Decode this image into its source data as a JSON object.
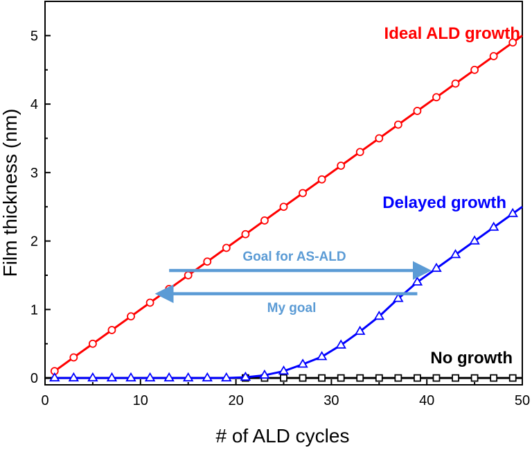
{
  "chart_data": {
    "type": "line",
    "xlabel": "# of ALD cycles",
    "ylabel": "Film thickness (nm)",
    "xlim": [
      0,
      50
    ],
    "ylim": [
      -0.1,
      5.5
    ],
    "xticks": [
      "0",
      "10",
      "20",
      "30",
      "40",
      "50"
    ],
    "yticks": [
      "0",
      "1",
      "2",
      "3",
      "4",
      "5"
    ],
    "grid": false,
    "series": [
      {
        "name": "Ideal ALD growth",
        "color": "#ff0000",
        "marker": "circle",
        "x": [
          1,
          3,
          5,
          7,
          9,
          11,
          13,
          15,
          17,
          19,
          21,
          23,
          25,
          27,
          29,
          31,
          33,
          35,
          37,
          39,
          41,
          43,
          45,
          47,
          49
        ],
        "y": [
          0.1,
          0.3,
          0.5,
          0.7,
          0.9,
          1.1,
          1.3,
          1.5,
          1.7,
          1.9,
          2.1,
          2.3,
          2.5,
          2.7,
          2.9,
          3.1,
          3.3,
          3.5,
          3.7,
          3.9,
          4.1,
          4.3,
          4.5,
          4.7,
          4.9
        ]
      },
      {
        "name": "Delayed growth",
        "color": "#0000ff",
        "marker": "triangle",
        "x": [
          1,
          3,
          5,
          7,
          9,
          11,
          13,
          15,
          17,
          19,
          21,
          23,
          25,
          27,
          29,
          31,
          33,
          35,
          37,
          39,
          41,
          43,
          45,
          47,
          49
        ],
        "y": [
          0,
          0,
          0,
          0,
          0,
          0,
          0,
          0,
          0,
          0,
          0.01,
          0.04,
          0.1,
          0.2,
          0.31,
          0.48,
          0.68,
          0.9,
          1.16,
          1.4,
          1.6,
          1.8,
          2.0,
          2.2,
          2.4
        ]
      },
      {
        "name": "No growth",
        "color": "#000000",
        "marker": "square",
        "x": [
          21,
          23,
          25,
          27,
          29,
          31,
          33,
          35,
          37,
          39,
          41,
          43,
          45,
          47,
          49
        ],
        "y": [
          0,
          0,
          0,
          0,
          0,
          0,
          0,
          0,
          0,
          0,
          0,
          0,
          0,
          0,
          0
        ]
      }
    ],
    "annotations": [
      {
        "text": "Goal for AS-ALD",
        "color": "#5b9bd5",
        "x_start": 13,
        "x_end": 40,
        "y": 1.57,
        "direction": "right"
      },
      {
        "text": "My goal",
        "color": "#5b9bd5",
        "x_start": 39,
        "x_end": 12,
        "y": 1.23,
        "direction": "left"
      }
    ]
  }
}
